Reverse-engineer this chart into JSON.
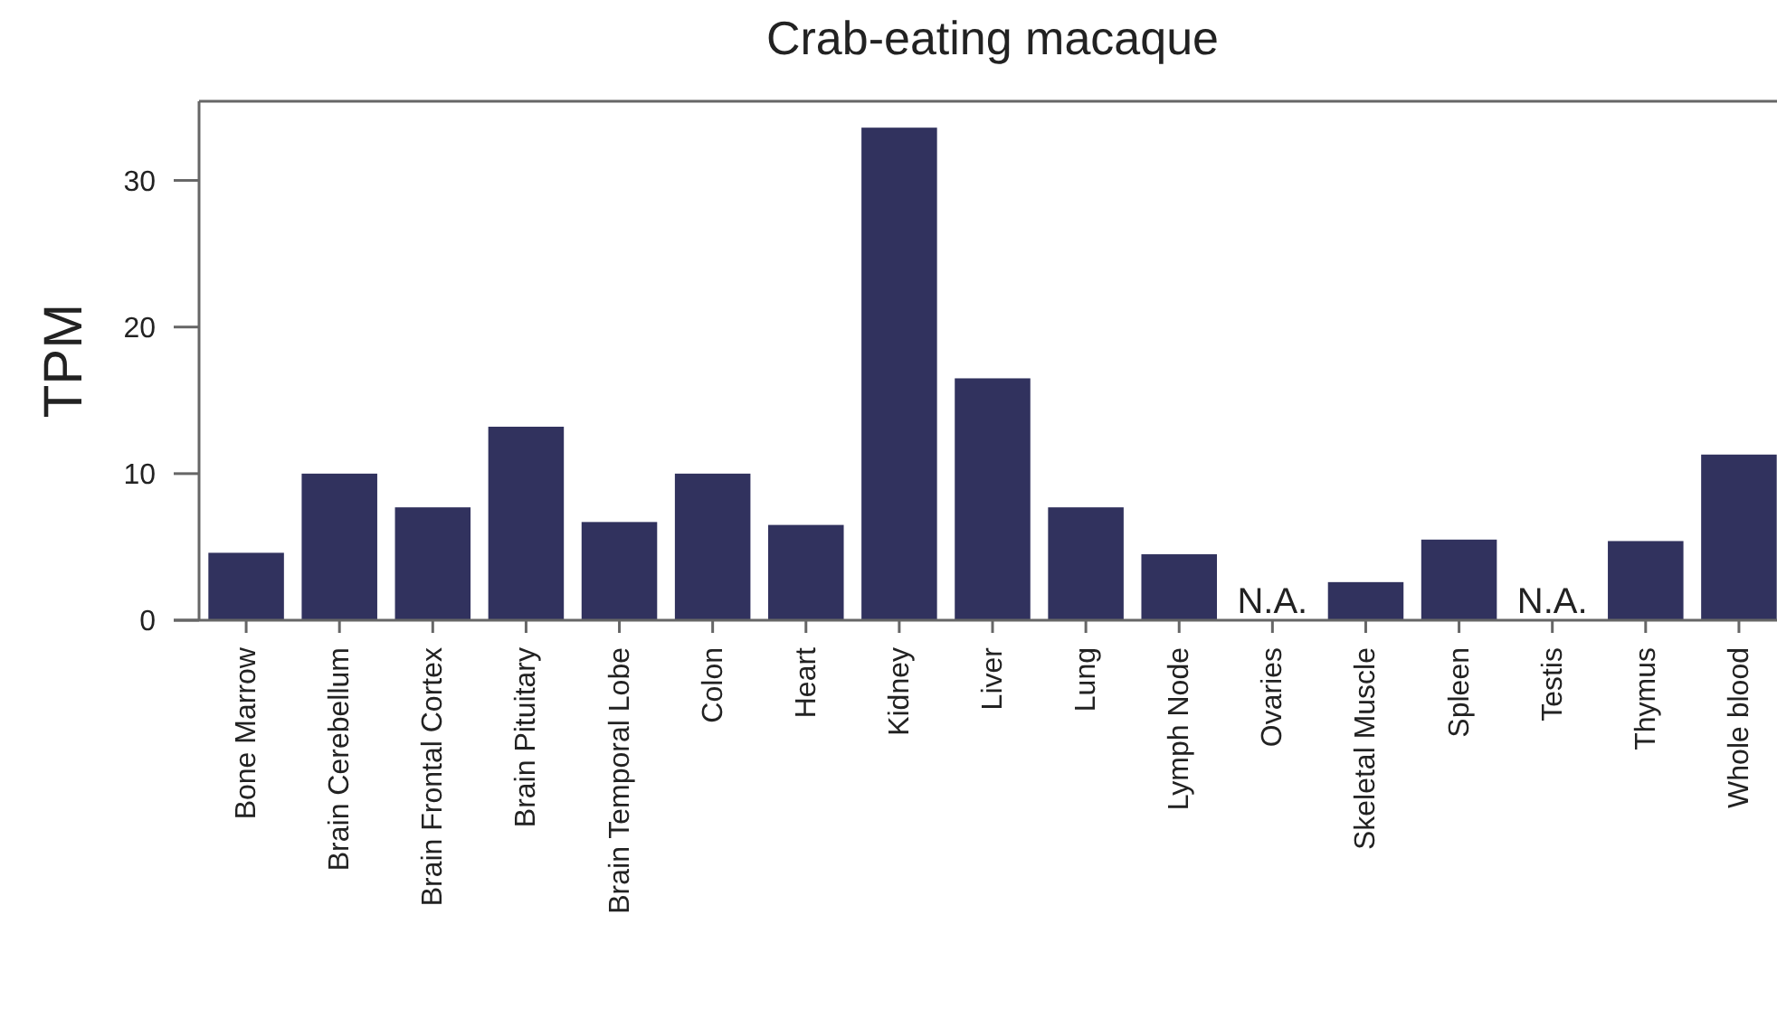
{
  "chart_data": {
    "type": "bar",
    "title": "Crab-eating macaque",
    "ylabel": "TPM",
    "categories": [
      "Bone Marrow",
      "Brain Cerebellum",
      "Brain Frontal Cortex",
      "Brain Pituitary",
      "Brain Temporal Lobe",
      "Colon",
      "Heart",
      "Kidney",
      "Liver",
      "Lung",
      "Lymph Node",
      "Ovaries",
      "Skeletal Muscle",
      "Spleen",
      "Testis",
      "Thymus",
      "Whole blood"
    ],
    "values": [
      4.6,
      10.0,
      7.7,
      13.2,
      6.7,
      10.0,
      6.5,
      33.6,
      16.5,
      7.7,
      4.5,
      null,
      2.6,
      5.5,
      null,
      5.4,
      11.3
    ],
    "color": "#31325e",
    "ylim": [
      0,
      35.4
    ],
    "yticks": [
      0,
      10,
      20,
      30
    ],
    "grid": false,
    "annotations": [
      "N.A.",
      "N.A."
    ]
  }
}
